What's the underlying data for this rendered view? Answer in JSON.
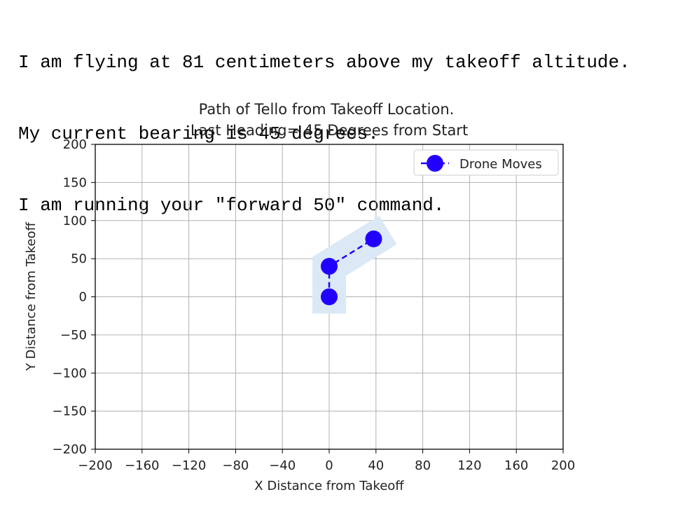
{
  "console": {
    "lines": [
      "I am flying at 81 centimeters above my takeoff altitude.",
      "My current bearing is 45 degrees.",
      "I am running your \"forward 50\" command."
    ]
  },
  "chart_data": {
    "type": "line",
    "title": "Path of Tello from Takeoff Location.",
    "subtitle": "Last Heading= 45 Degrees from Start",
    "xlabel": "X Distance from Takeoff",
    "ylabel": "Y Distance from Takeoff",
    "xlim": [
      -200,
      200
    ],
    "ylim": [
      -200,
      200
    ],
    "xticks": [
      "−200",
      "−160",
      "−120",
      "−80",
      "−40",
      "0",
      "40",
      "80",
      "120",
      "160",
      "200"
    ],
    "yticks": [
      "200",
      "150",
      "100",
      "50",
      "0",
      "−50",
      "−100",
      "−150",
      "−200"
    ],
    "grid": true,
    "legend_position": "top-right",
    "series": [
      {
        "name": "Drone Moves",
        "color": "#2200ff",
        "marker": "circle",
        "linestyle": "dashed",
        "x": [
          0,
          0,
          38
        ],
        "y": [
          0,
          40,
          76
        ]
      }
    ],
    "heading_highlight_color": "#dbe8f5"
  }
}
